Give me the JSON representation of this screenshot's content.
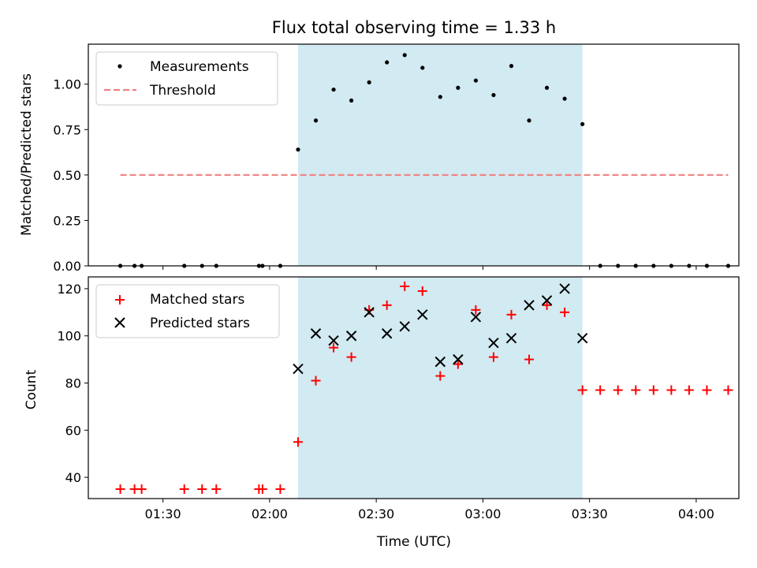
{
  "chart_data": [
    {
      "type": "scatter",
      "title": "Flux total observing time = 1.33 h",
      "xlabel": "",
      "ylabel": "Matched/Predicted stars",
      "xlim": [
        "01:09",
        "04:12"
      ],
      "ylim": [
        0,
        1.22
      ],
      "yticks": [
        "0.00",
        "0.25",
        "0.50",
        "0.75",
        "1.00"
      ],
      "ytick_values": [
        0,
        0.25,
        0.5,
        0.75,
        1.0
      ],
      "shaded_span": [
        "02:08",
        "03:28"
      ],
      "shade_color": "#add8e6",
      "legend": {
        "location": "upper-left",
        "entries": [
          "Measurements",
          "Threshold"
        ]
      },
      "series": [
        {
          "name": "Measurements",
          "marker": "dot",
          "color": "#000000",
          "points": [
            [
              "01:18",
              0
            ],
            [
              "01:22",
              0
            ],
            [
              "01:24",
              0
            ],
            [
              "01:36",
              0
            ],
            [
              "01:41",
              0
            ],
            [
              "01:45",
              0
            ],
            [
              "01:57",
              0
            ],
            [
              "01:58",
              0
            ],
            [
              "02:03",
              0
            ],
            [
              "02:08",
              0.64
            ],
            [
              "02:13",
              0.8
            ],
            [
              "02:18",
              0.97
            ],
            [
              "02:23",
              0.91
            ],
            [
              "02:28",
              1.01
            ],
            [
              "02:33",
              1.12
            ],
            [
              "02:38",
              1.16
            ],
            [
              "02:43",
              1.09
            ],
            [
              "02:48",
              0.93
            ],
            [
              "02:53",
              0.98
            ],
            [
              "02:58",
              1.02
            ],
            [
              "03:03",
              0.94
            ],
            [
              "03:08",
              1.1
            ],
            [
              "03:13",
              0.8
            ],
            [
              "03:18",
              0.98
            ],
            [
              "03:23",
              0.92
            ],
            [
              "03:28",
              0.78
            ],
            [
              "03:33",
              0
            ],
            [
              "03:38",
              0
            ],
            [
              "03:43",
              0
            ],
            [
              "03:48",
              0
            ],
            [
              "03:53",
              0
            ],
            [
              "03:58",
              0
            ],
            [
              "04:03",
              0
            ],
            [
              "04:09",
              0
            ]
          ]
        },
        {
          "name": "Threshold",
          "style": "dashed-line",
          "color": "#f08080",
          "points": [
            [
              "01:18",
              0.5
            ],
            [
              "04:09",
              0.5
            ]
          ]
        }
      ]
    },
    {
      "type": "scatter",
      "title": "",
      "xlabel": "Time (UTC)",
      "ylabel": "Count",
      "xlim": [
        "01:09",
        "04:12"
      ],
      "ylim": [
        31,
        125
      ],
      "xticks": [
        "01:30",
        "02:00",
        "02:30",
        "03:00",
        "03:30",
        "04:00"
      ],
      "yticks": [
        "40",
        "60",
        "80",
        "100",
        "120"
      ],
      "ytick_values": [
        40,
        60,
        80,
        100,
        120
      ],
      "shaded_span": [
        "02:08",
        "03:28"
      ],
      "shade_color": "#add8e6",
      "legend": {
        "location": "upper-left",
        "entries": [
          "Matched stars",
          "Predicted stars"
        ]
      },
      "series": [
        {
          "name": "Matched stars",
          "marker": "plus",
          "color": "#ff0000",
          "points": [
            [
              "01:18",
              35
            ],
            [
              "01:22",
              35
            ],
            [
              "01:24",
              35
            ],
            [
              "01:36",
              35
            ],
            [
              "01:41",
              35
            ],
            [
              "01:45",
              35
            ],
            [
              "01:57",
              35
            ],
            [
              "01:58",
              35
            ],
            [
              "02:03",
              35
            ],
            [
              "02:08",
              55
            ],
            [
              "02:13",
              81
            ],
            [
              "02:18",
              95
            ],
            [
              "02:23",
              91
            ],
            [
              "02:28",
              111
            ],
            [
              "02:33",
              113
            ],
            [
              "02:38",
              121
            ],
            [
              "02:43",
              119
            ],
            [
              "02:48",
              83
            ],
            [
              "02:53",
              88
            ],
            [
              "02:58",
              111
            ],
            [
              "03:03",
              91
            ],
            [
              "03:08",
              109
            ],
            [
              "03:13",
              90
            ],
            [
              "03:18",
              113
            ],
            [
              "03:23",
              110
            ],
            [
              "03:28",
              77
            ],
            [
              "03:33",
              77
            ],
            [
              "03:38",
              77
            ],
            [
              "03:43",
              77
            ],
            [
              "03:48",
              77
            ],
            [
              "03:53",
              77
            ],
            [
              "03:58",
              77
            ],
            [
              "04:03",
              77
            ],
            [
              "04:09",
              77
            ]
          ]
        },
        {
          "name": "Predicted stars",
          "marker": "x",
          "color": "#000000",
          "points": [
            [
              "02:08",
              86
            ],
            [
              "02:13",
              101
            ],
            [
              "02:18",
              98
            ],
            [
              "02:23",
              100
            ],
            [
              "02:28",
              110
            ],
            [
              "02:33",
              101
            ],
            [
              "02:38",
              104
            ],
            [
              "02:43",
              109
            ],
            [
              "02:48",
              89
            ],
            [
              "02:53",
              90
            ],
            [
              "02:58",
              108
            ],
            [
              "03:03",
              97
            ],
            [
              "03:08",
              99
            ],
            [
              "03:13",
              113
            ],
            [
              "03:18",
              115
            ],
            [
              "03:23",
              120
            ],
            [
              "03:28",
              99
            ]
          ]
        }
      ]
    }
  ]
}
